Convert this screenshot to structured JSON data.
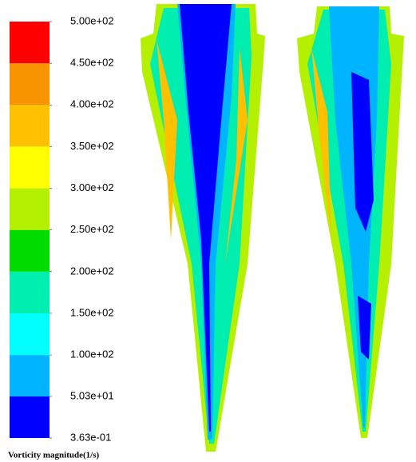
{
  "chart_data": {
    "type": "contour",
    "colorbar_label": "Vorticity magnitude(1/s)",
    "ylim": [
      0.363,
      500
    ],
    "yticks": [
      {
        "value": 0.363,
        "label": "3.63e-01"
      },
      {
        "value": 50.3,
        "label": "5.03e+01"
      },
      {
        "value": 100,
        "label": "1.00e+02"
      },
      {
        "value": 150,
        "label": "1.50e+02"
      },
      {
        "value": 200,
        "label": "2.00e+02"
      },
      {
        "value": 250,
        "label": "2.50e+02"
      },
      {
        "value": 300,
        "label": "3.00e+02"
      },
      {
        "value": 350,
        "label": "3.50e+02"
      },
      {
        "value": 400,
        "label": "4.00e+02"
      },
      {
        "value": 450,
        "label": "4.50e+02"
      },
      {
        "value": 500,
        "label": "5.00e+02"
      }
    ],
    "colors": [
      "#0000ff",
      "#00b4ff",
      "#00ffff",
      "#00eeb0",
      "#00dc00",
      "#b4f000",
      "#ffff00",
      "#ffc000",
      "#f79400",
      "#ff0000"
    ]
  }
}
